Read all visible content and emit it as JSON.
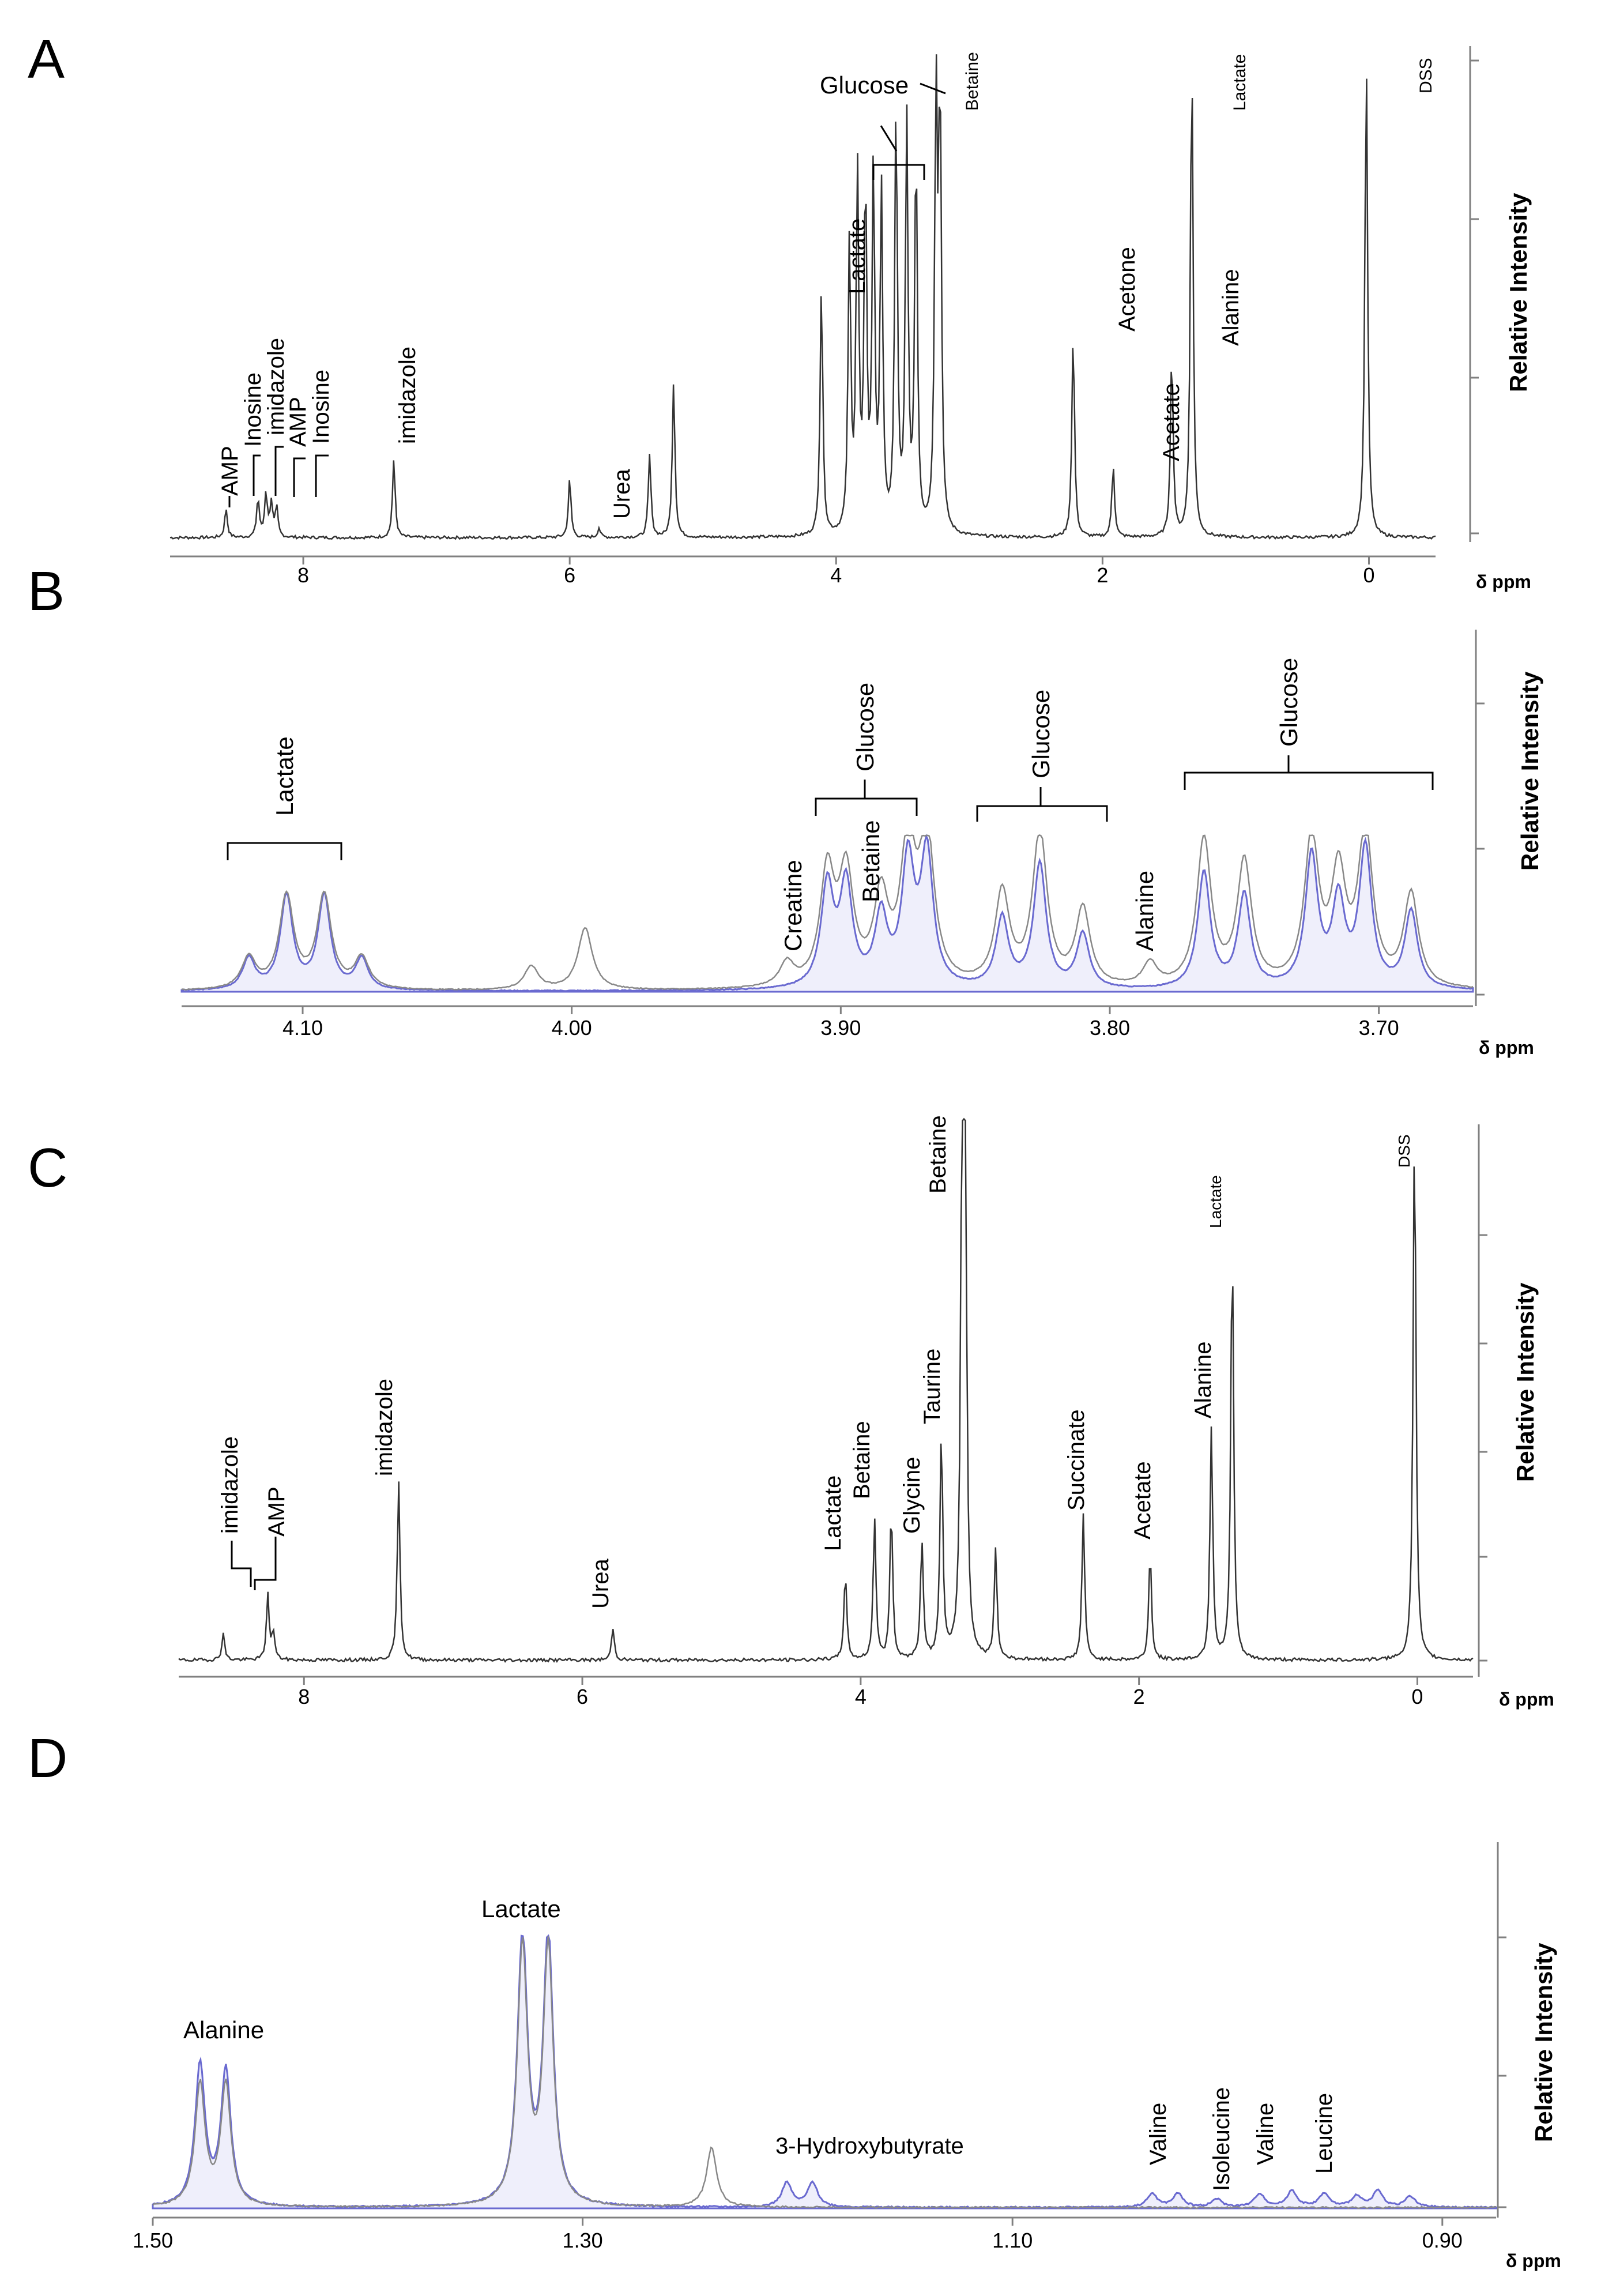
{
  "figure": {
    "ppm_unit": "δ ppm",
    "y_label": "Relative Intensity"
  },
  "chart_data": [
    {
      "panel": "A",
      "type": "line",
      "title": "",
      "xlabel": "δ ppm",
      "ylabel": "Relative Intensity",
      "xlim": [
        9.0,
        -0.5
      ],
      "x_ticks": [
        "8",
        "6",
        "4",
        "2",
        "0"
      ],
      "tick_values": [
        8,
        6,
        4,
        2,
        0
      ],
      "peaks": [
        {
          "ppm": 8.58,
          "h": 0.06
        },
        {
          "ppm": 8.34,
          "h": 0.08
        },
        {
          "ppm": 8.28,
          "h": 0.09
        },
        {
          "ppm": 8.24,
          "h": 0.07
        },
        {
          "ppm": 8.2,
          "h": 0.06
        },
        {
          "ppm": 7.32,
          "h": 0.16
        },
        {
          "ppm": 6.0,
          "h": 0.12
        },
        {
          "ppm": 5.78,
          "h": 0.02
        },
        {
          "ppm": 5.4,
          "h": 0.17
        },
        {
          "ppm": 5.22,
          "h": 0.32
        },
        {
          "ppm": 4.11,
          "h": 0.52
        },
        {
          "ppm": 3.9,
          "h": 0.6
        },
        {
          "ppm": 3.84,
          "h": 0.74
        },
        {
          "ppm": 3.78,
          "h": 0.72
        },
        {
          "ppm": 3.72,
          "h": 0.74
        },
        {
          "ppm": 3.66,
          "h": 0.7
        },
        {
          "ppm": 3.55,
          "h": 0.88
        },
        {
          "ppm": 3.47,
          "h": 0.85
        },
        {
          "ppm": 3.4,
          "h": 0.8
        },
        {
          "ppm": 3.25,
          "h": 0.9
        },
        {
          "ppm": 3.22,
          "h": 0.88
        },
        {
          "ppm": 2.22,
          "h": 0.42
        },
        {
          "ppm": 1.92,
          "h": 0.15
        },
        {
          "ppm": 1.48,
          "h": 0.38
        },
        {
          "ppm": 1.33,
          "h": 1.0
        },
        {
          "ppm": 0.02,
          "h": 1.0
        }
      ],
      "annotations": [
        "AMP",
        "Inosine",
        "imidazole",
        "AMP",
        "Inosine",
        "imidazole",
        "Urea",
        "Lactate",
        "Glucose",
        "Betaine",
        "Acetone",
        "Acetate",
        "Alanine",
        "Lactate",
        "DSS"
      ]
    },
    {
      "panel": "B",
      "type": "line",
      "title": "",
      "xlabel": "δ ppm",
      "ylabel": "Relative Intensity",
      "xlim": [
        4.145,
        3.665
      ],
      "x_ticks": [
        "4.10",
        "4.00",
        "3.90",
        "3.80",
        "3.70"
      ],
      "tick_values": [
        4.1,
        4.0,
        3.9,
        3.8,
        3.7
      ],
      "series": [
        {
          "name": "gray trace",
          "peaks": [
            {
              "ppm": 4.12,
              "h": 0.2
            },
            {
              "ppm": 4.106,
              "h": 0.6
            },
            {
              "ppm": 4.092,
              "h": 0.6
            },
            {
              "ppm": 4.078,
              "h": 0.2
            },
            {
              "ppm": 4.015,
              "h": 0.15
            },
            {
              "ppm": 3.995,
              "h": 0.4
            },
            {
              "ppm": 3.92,
              "h": 0.15
            },
            {
              "ppm": 3.905,
              "h": 0.72
            },
            {
              "ppm": 3.898,
              "h": 0.7
            },
            {
              "ppm": 3.885,
              "h": 0.55
            },
            {
              "ppm": 3.875,
              "h": 0.9
            },
            {
              "ppm": 3.868,
              "h": 0.95
            },
            {
              "ppm": 3.84,
              "h": 0.6
            },
            {
              "ppm": 3.826,
              "h": 1.0
            },
            {
              "ppm": 3.81,
              "h": 0.5
            },
            {
              "ppm": 3.785,
              "h": 0.15
            },
            {
              "ppm": 3.765,
              "h": 0.95
            },
            {
              "ppm": 3.75,
              "h": 0.8
            },
            {
              "ppm": 3.725,
              "h": 0.95
            },
            {
              "ppm": 3.715,
              "h": 0.7
            },
            {
              "ppm": 3.705,
              "h": 1.0
            },
            {
              "ppm": 3.688,
              "h": 0.6
            }
          ]
        },
        {
          "name": "blue trace",
          "peaks": [
            {
              "ppm": 4.12,
              "h": 0.2
            },
            {
              "ppm": 4.106,
              "h": 0.6
            },
            {
              "ppm": 4.092,
              "h": 0.6
            },
            {
              "ppm": 4.078,
              "h": 0.2
            },
            {
              "ppm": 3.905,
              "h": 0.65
            },
            {
              "ppm": 3.898,
              "h": 0.65
            },
            {
              "ppm": 3.885,
              "h": 0.45
            },
            {
              "ppm": 3.875,
              "h": 0.8
            },
            {
              "ppm": 3.868,
              "h": 0.85
            },
            {
              "ppm": 3.84,
              "h": 0.45
            },
            {
              "ppm": 3.826,
              "h": 0.8
            },
            {
              "ppm": 3.81,
              "h": 0.35
            },
            {
              "ppm": 3.765,
              "h": 0.75
            },
            {
              "ppm": 3.75,
              "h": 0.6
            },
            {
              "ppm": 3.725,
              "h": 0.85
            },
            {
              "ppm": 3.715,
              "h": 0.55
            },
            {
              "ppm": 3.705,
              "h": 0.9
            },
            {
              "ppm": 3.688,
              "h": 0.5
            }
          ]
        }
      ],
      "annotations": [
        "Lactate",
        "Creatine",
        "Glucose",
        "Betaine",
        "Glucose",
        "Alanine",
        "Glucose"
      ]
    },
    {
      "panel": "C",
      "type": "line",
      "title": "",
      "xlabel": "δ ppm",
      "ylabel": "Relative Intensity",
      "xlim": [
        8.9,
        -0.4
      ],
      "x_ticks": [
        "8",
        "6",
        "4",
        "2",
        "0"
      ],
      "tick_values": [
        8,
        6,
        4,
        2,
        0
      ],
      "peaks": [
        {
          "ppm": 8.58,
          "h": 0.05
        },
        {
          "ppm": 8.26,
          "h": 0.12
        },
        {
          "ppm": 8.22,
          "h": 0.05
        },
        {
          "ppm": 7.32,
          "h": 0.33
        },
        {
          "ppm": 5.78,
          "h": 0.06
        },
        {
          "ppm": 4.11,
          "h": 0.16
        },
        {
          "ppm": 3.9,
          "h": 0.26
        },
        {
          "ppm": 3.78,
          "h": 0.28
        },
        {
          "ppm": 3.56,
          "h": 0.22
        },
        {
          "ppm": 3.42,
          "h": 0.42
        },
        {
          "ppm": 3.27,
          "h": 1.0
        },
        {
          "ppm": 3.25,
          "h": 1.0
        },
        {
          "ppm": 3.03,
          "h": 0.2
        },
        {
          "ppm": 2.4,
          "h": 0.27
        },
        {
          "ppm": 1.92,
          "h": 0.2
        },
        {
          "ppm": 1.48,
          "h": 0.43
        },
        {
          "ppm": 1.33,
          "h": 0.78
        },
        {
          "ppm": 0.02,
          "h": 1.0
        }
      ],
      "annotations": [
        "imidazole",
        "AMP",
        "imidazole",
        "Urea",
        "Lactate",
        "Betaine",
        "Glycine",
        "Taurine",
        "Betaine",
        "Succinate",
        "Acetate",
        "Alanine",
        "Lactate",
        "DSS"
      ]
    },
    {
      "panel": "D",
      "type": "line",
      "title": "",
      "xlabel": "δ ppm",
      "ylabel": "Relative Intensity",
      "xlim": [
        1.5,
        0.875
      ],
      "x_ticks": [
        "1.50",
        "1.30",
        "1.10",
        "0.90"
      ],
      "tick_values": [
        1.5,
        1.3,
        1.1,
        0.9
      ],
      "series": [
        {
          "name": "blue trace",
          "peaks": [
            {
              "ppm": 1.478,
              "h": 0.52
            },
            {
              "ppm": 1.466,
              "h": 0.5
            },
            {
              "ppm": 1.328,
              "h": 1.0
            },
            {
              "ppm": 1.316,
              "h": 1.0
            },
            {
              "ppm": 1.205,
              "h": 0.09
            },
            {
              "ppm": 1.193,
              "h": 0.09
            },
            {
              "ppm": 1.035,
              "h": 0.05
            },
            {
              "ppm": 1.023,
              "h": 0.05
            },
            {
              "ppm": 1.005,
              "h": 0.03
            },
            {
              "ppm": 0.985,
              "h": 0.05
            },
            {
              "ppm": 0.97,
              "h": 0.06
            },
            {
              "ppm": 0.955,
              "h": 0.05
            },
            {
              "ppm": 0.94,
              "h": 0.04
            },
            {
              "ppm": 0.93,
              "h": 0.06
            },
            {
              "ppm": 0.915,
              "h": 0.04
            }
          ]
        },
        {
          "name": "gray trace",
          "peaks": [
            {
              "ppm": 1.478,
              "h": 0.45
            },
            {
              "ppm": 1.466,
              "h": 0.45
            },
            {
              "ppm": 1.328,
              "h": 0.95
            },
            {
              "ppm": 1.316,
              "h": 0.95
            },
            {
              "ppm": 1.24,
              "h": 0.22
            }
          ]
        }
      ],
      "annotations": [
        "Alanine",
        "Lactate",
        "3-Hydroxybutyrate",
        "Valine",
        "Isoleucine",
        "Valine",
        "Leucine"
      ]
    }
  ],
  "panels": {
    "A": {
      "letter": "A",
      "labels": {
        "amp1": "AMP",
        "inosine1": "Inosine",
        "imidazole1": "imidazole",
        "amp2": "AMP",
        "inosine2": "Inosine",
        "imidazole2": "imidazole",
        "urea": "Urea",
        "lactate1": "Lactate",
        "glucose": "Glucose",
        "betaine": "Betaine",
        "acetone": "Acetone",
        "acetate": "Acetate",
        "alanine": "Alanine",
        "lactate2": "Lactate",
        "dss": "DSS"
      }
    },
    "B": {
      "letter": "B",
      "labels": {
        "lactate": "Lactate",
        "creatine": "Creatine",
        "glucose1": "Glucose",
        "betaine": "Betaine",
        "glucose2": "Glucose",
        "alanine": "Alanine",
        "glucose3": "Glucose"
      }
    },
    "C": {
      "letter": "C",
      "labels": {
        "imidazole1": "imidazole",
        "amp": "AMP",
        "imidazole2": "imidazole",
        "urea": "Urea",
        "lactate1": "Lactate",
        "betaine1": "Betaine",
        "glycine": "Glycine",
        "taurine": "Taurine",
        "betaine2": "Betaine",
        "succinate": "Succinate",
        "acetate": "Acetate",
        "alanine": "Alanine",
        "lactate2": "Lactate",
        "dss": "DSS"
      }
    },
    "D": {
      "letter": "D",
      "labels": {
        "alanine": "Alanine",
        "lactate": "Lactate",
        "hydroxybutyrate": "3-Hydroxybutyrate",
        "valine1": "Valine",
        "isoleucine": "Isoleucine",
        "valine2": "Valine",
        "leucine": "Leucine"
      }
    }
  }
}
